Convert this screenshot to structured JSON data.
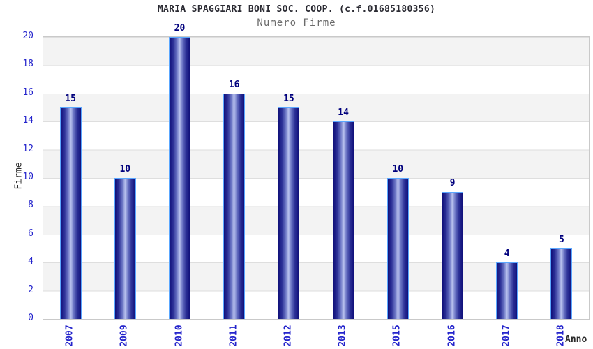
{
  "header": {
    "title": "MARIA SPAGGIARI BONI SOC. COOP. (c.f.01685180356)",
    "subtitle": "Numero Firme"
  },
  "chart_data": {
    "type": "bar",
    "title": "MARIA SPAGGIARI BONI SOC. COOP. (c.f.01685180356)",
    "subtitle": "Numero Firme",
    "categories": [
      "2007",
      "2009",
      "2010",
      "2011",
      "2012",
      "2013",
      "2015",
      "2016",
      "2017",
      "2018"
    ],
    "values": [
      15,
      10,
      20,
      16,
      15,
      14,
      10,
      9,
      4,
      5
    ],
    "xlabel": "Anno",
    "ylabel": "Firme",
    "ylim": [
      0,
      20
    ],
    "yticks": [
      0,
      2,
      4,
      6,
      8,
      10,
      12,
      14,
      16,
      18,
      20
    ],
    "grid": true,
    "legend_position": "none",
    "band_fill": "alternating gray/white every 2 units",
    "colors": {
      "bar_edge_dark": "#10107a",
      "bar_center_light": "#b9c2ee",
      "bar_border": "#5aa7ff",
      "tick_label": "#2424cc",
      "value_label": "#00007d",
      "band_gray": "#f3f3f3",
      "gridline": "#dedede",
      "plot_border": "#c9c9c9",
      "title": "#2b2b33",
      "subtitle": "#6b6b6b"
    }
  }
}
